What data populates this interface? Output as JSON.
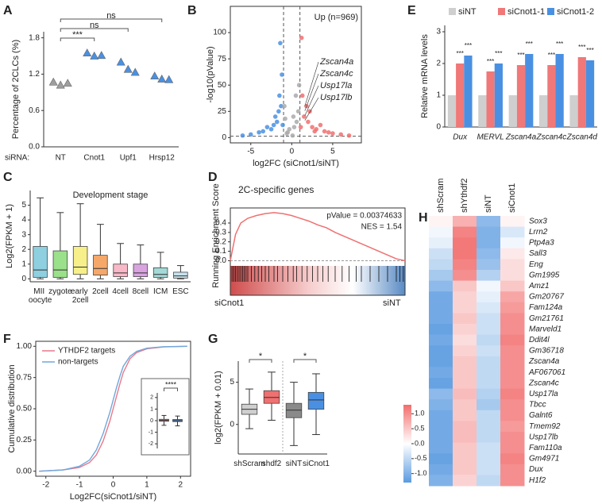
{
  "chart_data": [
    {
      "type": "dot",
      "label": "A",
      "ylabel": "Percentage of 2CLCs (%)",
      "xlabel": "siRNA:",
      "categories": [
        "NT",
        "Cnot1",
        "Upf1",
        "Hrsp12"
      ],
      "values": [
        [
          1.07,
          1.02,
          1.05
        ],
        [
          1.55,
          1.5,
          1.51
        ],
        [
          1.4,
          1.28,
          1.23
        ],
        [
          1.17,
          1.12,
          1.11
        ]
      ],
      "colors": [
        "#9e9e9e",
        "#4a90e2",
        "#4a90e2",
        "#4a90e2"
      ],
      "ylim": [
        0,
        1.9
      ],
      "yticks": [
        {
          "value": 0,
          "label": "0.0"
        },
        {
          "value": 0.6,
          "label": "0.6"
        },
        {
          "value": 1.2,
          "label": "1.2"
        },
        {
          "value": 1.8,
          "label": "1.8"
        }
      ],
      "brackets": [
        {
          "from": 0,
          "to": 1,
          "text": "***"
        },
        {
          "from": 0,
          "to": 2,
          "text": "ns"
        },
        {
          "from": 0,
          "to": 3,
          "text": "ns"
        }
      ]
    },
    {
      "type": "scatter",
      "label": "B",
      "ylabel": "-log10(pValue)",
      "xlabel": "log2FC (siCnot1/siNT)",
      "note": "Up (n=969)",
      "annotations": [
        "Zscan4a",
        "Zscan4c",
        "Usp17la",
        "Usp17lb"
      ],
      "xlim": [
        -7.5,
        8.5
      ],
      "ylim": [
        -5,
        125
      ],
      "xticks": [
        -5,
        0,
        5
      ],
      "yticks": [
        0,
        25,
        50,
        75,
        100
      ],
      "vlines": [
        -1,
        1
      ],
      "hline": 1.3,
      "series": [
        {
          "name": "Down",
          "color": "#4a90e2",
          "x": [
            -1.2,
            -1.5,
            -2,
            -1.8,
            -3,
            -4,
            -2.5,
            -1.3,
            -1.1,
            -5,
            -3.5,
            -1.6,
            -2.2,
            -1.4,
            -6
          ],
          "values": [
            60,
            40,
            20,
            15,
            10,
            5,
            8,
            30,
            12,
            3,
            6,
            25,
            12,
            90,
            2
          ]
        },
        {
          "name": "Up",
          "color": "#f07070",
          "x": [
            1.2,
            1.5,
            2,
            2.5,
            3,
            4,
            5,
            6,
            7,
            1.8,
            2.2,
            3.5,
            1.3,
            4.5,
            2.8,
            1.1
          ],
          "values": [
            95,
            20,
            15,
            10,
            8,
            6,
            4,
            3,
            2,
            30,
            25,
            12,
            40,
            5,
            6,
            10
          ]
        },
        {
          "name": "NS",
          "color": "#aaaaaa",
          "x": [
            -0.5,
            0.3,
            0.8,
            -0.8,
            0.1,
            0.5,
            -0.3,
            0.9,
            -0.9,
            0.6,
            -0.6,
            0.2
          ],
          "values": [
            5,
            10,
            25,
            18,
            2,
            40,
            8,
            50,
            30,
            15,
            4,
            20
          ]
        }
      ]
    },
    {
      "type": "bar",
      "label": "E",
      "ylabel": "Relative mRNA levels",
      "categories": [
        "Dux",
        "MERVL",
        "Zscan4a",
        "Zscan4c",
        "Zscan4d"
      ],
      "ylim": [
        0,
        3.2
      ],
      "yticks": [
        0,
        1,
        2,
        3
      ],
      "series": [
        {
          "name": "siNT",
          "color": "#cfcfcf",
          "values": [
            1.0,
            1.0,
            1.0,
            1.0,
            1.0
          ]
        },
        {
          "name": "siCnot1-1",
          "color": "#f07878",
          "values": [
            2.0,
            1.75,
            1.95,
            1.95,
            2.2
          ],
          "labels": [
            "***",
            "***",
            "***",
            "***",
            "***"
          ]
        },
        {
          "name": "siCnot1-2",
          "color": "#4a90e2",
          "values": [
            2.25,
            2.0,
            2.3,
            2.3,
            2.1
          ],
          "labels": [
            "***",
            "***",
            "***",
            "***",
            "***"
          ]
        }
      ]
    },
    {
      "type": "box",
      "label": "C",
      "title": "Development stage",
      "ylabel": "Log2(FPKM + 1)",
      "categories": [
        "MII oocyte",
        "zygote",
        "early 2cell",
        "2cell",
        "4cell",
        "8cell",
        "ICM",
        "ESC"
      ],
      "boxes": [
        [
          0,
          0.1,
          0.6,
          2.2,
          5.5
        ],
        [
          0,
          0.1,
          0.6,
          1.9,
          4.5
        ],
        [
          0,
          0.3,
          0.8,
          2.2,
          5.1
        ],
        [
          0,
          0.25,
          0.7,
          1.6,
          3.7
        ],
        [
          0,
          0.15,
          0.4,
          1.0,
          2.4
        ],
        [
          0,
          0.15,
          0.4,
          1.0,
          2.3
        ],
        [
          0,
          0.1,
          0.3,
          0.75,
          1.8
        ],
        [
          0,
          0.05,
          0.2,
          0.45,
          0.9
        ]
      ],
      "colors": [
        "#8ecfe0",
        "#9be08a",
        "#f6ef8a",
        "#f5a86a",
        "#f8b8c8",
        "#d9a3e0",
        "#a3d9d6",
        "#c8e3ef"
      ],
      "ylim": [
        -0.2,
        6
      ],
      "yticks": [
        0,
        1,
        2,
        3,
        4,
        5
      ]
    },
    {
      "type": "gsea",
      "label": "D",
      "title": "2C-specific genes",
      "pvalue": "pValue = 0.00374633",
      "nes": "NES = 1.54",
      "ylabel": "Running Enrichment Score",
      "x_labels": [
        "siCnot1",
        "siNT"
      ],
      "x": [
        0,
        3,
        6,
        10,
        15,
        20,
        25,
        30,
        35,
        40,
        45,
        50,
        55,
        60,
        65,
        70,
        75,
        80,
        85,
        90,
        95,
        100
      ],
      "values": [
        0,
        0.28,
        0.4,
        0.45,
        0.48,
        0.5,
        0.51,
        0.5,
        0.48,
        0.45,
        0.42,
        0.38,
        0.35,
        0.3,
        0.26,
        0.22,
        0.18,
        0.14,
        0.1,
        0.06,
        0.02,
        0
      ],
      "hits": [
        1,
        2,
        3,
        4,
        5,
        6,
        7,
        8,
        9,
        10,
        12,
        14,
        16,
        18,
        20,
        22,
        25,
        27,
        30,
        33,
        36,
        38,
        41,
        44,
        47,
        50,
        53,
        56,
        60,
        64,
        68,
        72,
        75,
        80,
        85,
        90,
        95,
        97,
        99
      ],
      "color": "#f07070",
      "xlim": [
        0,
        100
      ],
      "ylim": [
        -0.03,
        0.56
      ],
      "yticks": [
        {
          "value": 0,
          "label": "0.0"
        },
        {
          "value": 0.1,
          "label": "0.1"
        },
        {
          "value": 0.2,
          "label": "0.2"
        },
        {
          "value": 0.3,
          "label": "0.3"
        },
        {
          "value": 0.4,
          "label": "0.4"
        }
      ]
    },
    {
      "type": "heatmap",
      "label": "H",
      "columns": [
        "shScram",
        "shYthdf2",
        "siNT",
        "siCnot1"
      ],
      "rows": [
        "Sox3",
        "Lrrn2",
        "Ptp4a3",
        "Sall3",
        "Eng",
        "Gm1995",
        "Amz1",
        "Gm20767",
        "Fam124a",
        "Gm21761",
        "Marveld1",
        "Ddit4l",
        "Gm36718",
        "Zscan4a",
        "AF067061",
        "Zscan4c",
        "Usp17la",
        "Tbcc",
        "Galnt6",
        "Tmem92",
        "Usp17lb",
        "Fam110a",
        "Gm4971",
        "Dux",
        "H1f2"
      ],
      "row_label_colors": [
        "#222222",
        "#222222",
        "#222222",
        "#222222",
        "#222222",
        "#222222",
        "#222222",
        "#222222",
        "#222222",
        "#222222",
        "#222222",
        "#222222",
        "#222222",
        "#d03030",
        "#222222",
        "#d03030",
        "#d03030",
        "#222222",
        "#222222",
        "#222222",
        "#d03030",
        "#222222",
        "#222222",
        "#d03030",
        "#222222"
      ],
      "values": [
        [
          0.1,
          0.7,
          -0.9,
          0.1
        ],
        [
          -0.1,
          1.1,
          -1.0,
          -0.3
        ],
        [
          -0.2,
          1.2,
          -1.0,
          -0.1
        ],
        [
          -0.4,
          1.2,
          -0.9,
          0.2
        ],
        [
          -0.5,
          1.1,
          -0.8,
          0.3
        ],
        [
          -0.7,
          1.0,
          -0.6,
          0.3
        ],
        [
          -0.9,
          0.5,
          -0.1,
          0.5
        ],
        [
          -1.1,
          0.4,
          -0.2,
          0.8
        ],
        [
          -1.1,
          0.4,
          -0.3,
          0.9
        ],
        [
          -1.1,
          0.5,
          -0.4,
          1.0
        ],
        [
          -1.2,
          0.4,
          -0.4,
          1.0
        ],
        [
          -1.1,
          0.3,
          -0.5,
          1.1
        ],
        [
          -1.2,
          0.4,
          -0.4,
          1.0
        ],
        [
          -1.2,
          0.5,
          -0.5,
          1.0
        ],
        [
          -1.1,
          0.5,
          -0.5,
          1.0
        ],
        [
          -1.2,
          0.5,
          -0.5,
          1.0
        ],
        [
          -0.9,
          0.6,
          -0.6,
          1.1
        ],
        [
          -1.0,
          0.5,
          -0.7,
          1.0
        ],
        [
          -1.1,
          0.5,
          -0.5,
          1.0
        ],
        [
          -1.1,
          0.6,
          -0.5,
          0.9
        ],
        [
          -1.1,
          0.6,
          -0.5,
          1.0
        ],
        [
          -1.1,
          0.5,
          -0.4,
          1.0
        ],
        [
          -1.2,
          0.5,
          -0.4,
          1.1
        ],
        [
          -1.1,
          0.5,
          -0.4,
          1.0
        ],
        [
          -1.0,
          0.4,
          -0.5,
          1.0
        ]
      ],
      "clim": [
        -1.3,
        1.3
      ],
      "colormap": [
        "#5a9be0",
        "#ffffff",
        "#f26d6d"
      ],
      "colorbar_ticks": [
        {
          "value": 1,
          "label": "1.0"
        },
        {
          "value": 0.5,
          "label": "0.5"
        },
        {
          "value": 0,
          "label": "0.0"
        },
        {
          "value": -0.5,
          "label": "-0.5"
        },
        {
          "value": -1,
          "label": "-1.0"
        }
      ]
    },
    {
      "type": "line",
      "label": "F",
      "ylabel": "Cumulative distribution",
      "xlabel": "Log2FC(siCnot1/siNT)",
      "x": [
        -2.2,
        -1.5,
        -1,
        -0.7,
        -0.5,
        -0.3,
        -0.1,
        0,
        0.1,
        0.2,
        0.3,
        0.5,
        0.7,
        1,
        1.5,
        2.2
      ],
      "series": [
        {
          "name": "YTHDF2 targets",
          "color": "#e8798a",
          "values": [
            0,
            0.01,
            0.03,
            0.07,
            0.13,
            0.24,
            0.4,
            0.5,
            0.6,
            0.7,
            0.79,
            0.9,
            0.95,
            0.98,
            0.995,
            1
          ]
        },
        {
          "name": "non-targets",
          "color": "#6fa8dc",
          "values": [
            0,
            0.01,
            0.04,
            0.09,
            0.17,
            0.3,
            0.47,
            0.57,
            0.67,
            0.76,
            0.84,
            0.92,
            0.96,
            0.985,
            0.997,
            1
          ]
        }
      ],
      "xlim": [
        -2.3,
        2.3
      ],
      "ylim": [
        -0.04,
        1.04
      ],
      "xticks": [
        -2,
        -1,
        0,
        1,
        2
      ],
      "yticks": [
        {
          "value": 0,
          "label": "0.00"
        },
        {
          "value": 0.25,
          "label": "0.25"
        },
        {
          "value": 0.5,
          "label": "0.50"
        },
        {
          "value": 0.75,
          "label": "0.75"
        },
        {
          "value": 1,
          "label": "1.00"
        }
      ]
    },
    {
      "type": "box",
      "boxes": [
        [
          -0.4,
          -0.05,
          0.02,
          0.12,
          0.45
        ],
        [
          -0.45,
          -0.08,
          0,
          0.1,
          0.4
        ]
      ],
      "colors": [
        "#e8798a",
        "#4a90e2"
      ],
      "ylim": [
        -2.4,
        2.4
      ],
      "yticks": [
        -2,
        -1,
        0,
        1,
        2
      ],
      "brackets": [
        {
          "from": 0,
          "to": 1,
          "text": "****"
        }
      ]
    },
    {
      "type": "box",
      "label": "G",
      "ylabel": "log2(FPKM + 0.01)",
      "categories": [
        "shScram",
        "shdf2",
        "siNT",
        "siCnot1"
      ],
      "boxes": [
        [
          -0.5,
          1.2,
          1.8,
          2.4,
          4.2
        ],
        [
          0.5,
          2.5,
          3.2,
          4.0,
          6.2
        ],
        [
          -2.5,
          0.8,
          1.7,
          2.5,
          5.0
        ],
        [
          -1.2,
          1.8,
          2.9,
          3.8,
          6.0
        ]
      ],
      "colors": [
        "#cfcfcf",
        "#f07070",
        "#8a8a8a",
        "#4a90e2"
      ],
      "ylim": [
        -3.5,
        7.5
      ],
      "yticks": [
        0,
        5
      ],
      "brackets": [
        {
          "from": 0,
          "to": 1,
          "text": "*"
        },
        {
          "from": 2,
          "to": 3,
          "text": "*"
        }
      ]
    }
  ]
}
